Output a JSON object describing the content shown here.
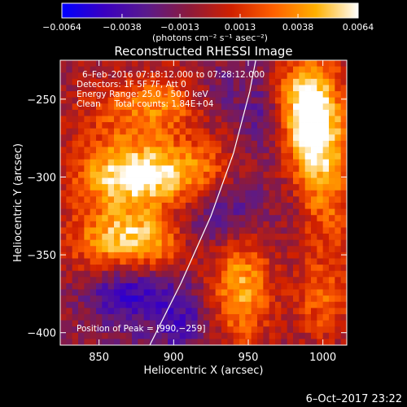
{
  "chart_data": {
    "type": "heatmap",
    "title": "Reconstructed RHESSI Image",
    "xlabel": "Heliocentric X (arcsec)",
    "ylabel": "Heliocentric Y (arcsec)",
    "xlim": [
      824,
      1016
    ],
    "ylim": [
      -408,
      -225
    ],
    "xticks": [
      850,
      900,
      950,
      1000
    ],
    "yticks": [
      -250,
      -300,
      -350,
      -400
    ],
    "colorbar": {
      "min": -0.0064,
      "max": 0.0064,
      "ticks": [
        -0.0064,
        -0.0038,
        -0.0013,
        0.0013,
        0.0038,
        0.0064
      ],
      "tick_labels": [
        "−0.0064",
        "−0.0038",
        "−0.0013",
        "0.0013",
        "0.0038",
        "0.0064"
      ],
      "units": "(photons cm⁻² s⁻¹ asec⁻²)",
      "colors": [
        "#0000ff",
        "#3a00c0",
        "#5a1a8c",
        "#8c1a3c",
        "#d02000",
        "#ff6000",
        "#ffb000",
        "#ffffff"
      ]
    },
    "annotations": {
      "time_range": "6–Feb–2016 07:18:12.000 to 07:28:12.000",
      "detectors": "Detectors: 1F 5F 7F, Att 0",
      "energy": "Energy Range: 25.0 – 50.0 keV",
      "method": "Clean     Total counts: 1.84E+04",
      "peak": "Position of Peak = [990,−259]"
    },
    "limb_curve": [
      [
        884,
        -408
      ],
      [
        905,
        -368
      ],
      [
        925,
        -325
      ],
      [
        940,
        -285
      ],
      [
        951,
        -245
      ],
      [
        955,
        -225
      ]
    ],
    "grid_cells": [
      48,
      46
    ],
    "blobs": [
      {
        "x": 870,
        "y": -300,
        "w": 2.4,
        "sx": 26,
        "sy": 38
      },
      {
        "x": 885,
        "y": -300,
        "w": 1.4,
        "sx": 28,
        "sy": 10
      },
      {
        "x": 872,
        "y": -345,
        "w": 1.6,
        "sx": 30,
        "sy": 16
      },
      {
        "x": 900,
        "y": -250,
        "w": 1.3,
        "sx": 18,
        "sy": 16
      },
      {
        "x": 925,
        "y": -290,
        "w": 1.2,
        "sx": 22,
        "sy": 12
      },
      {
        "x": 945,
        "y": -370,
        "w": 2.6,
        "sx": 14,
        "sy": 26
      },
      {
        "x": 990,
        "y": -260,
        "w": 3.0,
        "sx": 12,
        "sy": 22
      },
      {
        "x": 1000,
        "y": -290,
        "w": 2.4,
        "sx": 16,
        "sy": 40
      },
      {
        "x": 1000,
        "y": -380,
        "w": 1.4,
        "sx": 14,
        "sy": 18
      },
      {
        "x": 975,
        "y": -240,
        "w": 0.9,
        "sx": 10,
        "sy": 10
      },
      {
        "x": 980,
        "y": -320,
        "w": -0.6,
        "sx": 10,
        "sy": 22
      },
      {
        "x": 870,
        "y": -375,
        "w": -2.4,
        "sx": 20,
        "sy": 14
      },
      {
        "x": 905,
        "y": -390,
        "w": -1.4,
        "sx": 14,
        "sy": 16
      },
      {
        "x": 940,
        "y": -320,
        "w": -1.2,
        "sx": 14,
        "sy": 22
      },
      {
        "x": 915,
        "y": -335,
        "w": -1.0,
        "sx": 16,
        "sy": 12
      },
      {
        "x": 960,
        "y": -260,
        "w": -0.9,
        "sx": 12,
        "sy": 26
      },
      {
        "x": 925,
        "y": -245,
        "w": -0.8,
        "sx": 16,
        "sy": 14
      }
    ]
  },
  "footer": {
    "timestamp": "6–Oct–2017 23:22"
  }
}
